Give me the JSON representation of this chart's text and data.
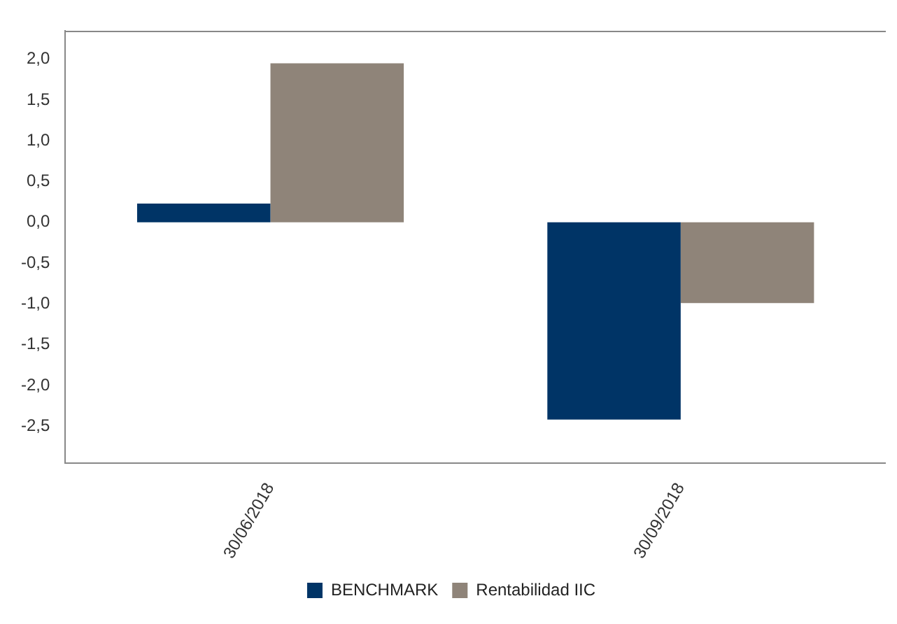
{
  "chart_data": {
    "type": "bar",
    "categories": [
      "30/06/2018",
      "30/09/2018"
    ],
    "series": [
      {
        "name": "BENCHMARK",
        "color": "#003466",
        "values": [
          0.23,
          -2.42
        ]
      },
      {
        "name": "Rentabilidad IIC",
        "color": "#8f8479",
        "values": [
          1.95,
          -0.99
        ]
      }
    ],
    "ylim": [
      -2.95,
      2.35
    ],
    "yticks": [
      {
        "value": -2.5,
        "label": "-2,5"
      },
      {
        "value": -2,
        "label": "-2,0"
      },
      {
        "value": -1.5,
        "label": "-1,5"
      },
      {
        "value": -1,
        "label": "-1,0"
      },
      {
        "value": -0.5,
        "label": "-0,5"
      },
      {
        "value": 0,
        "label": "0,0"
      },
      {
        "value": 0.5,
        "label": "0,5"
      },
      {
        "value": 1,
        "label": "1,0"
      },
      {
        "value": 1.5,
        "label": "1,5"
      },
      {
        "value": 2,
        "label": "2,0"
      }
    ],
    "grid": false,
    "legend": "bottom"
  }
}
